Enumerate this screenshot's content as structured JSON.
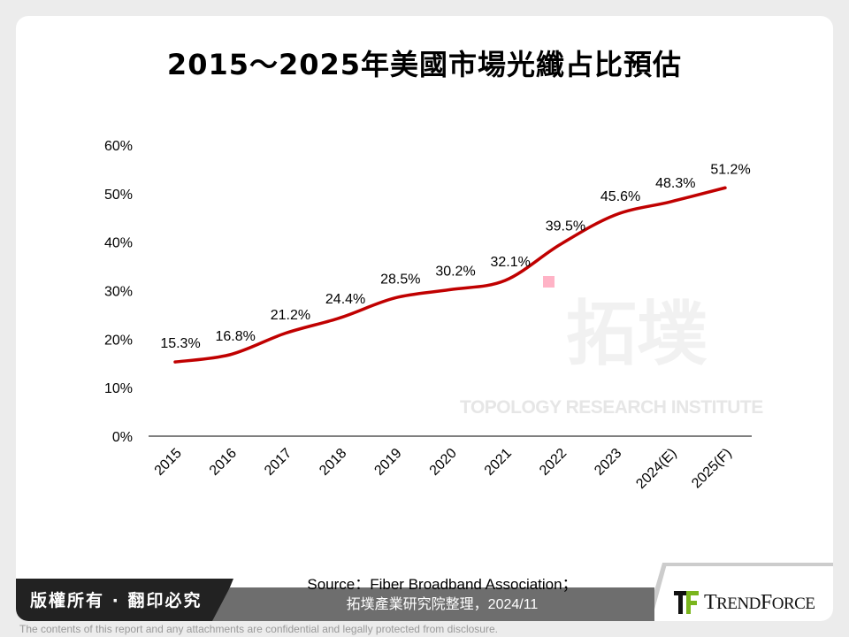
{
  "chart_data": {
    "type": "line",
    "title": "2015～2025年美國市場光纖占比預估",
    "categories": [
      "2015",
      "2016",
      "2017",
      "2018",
      "2019",
      "2020",
      "2021",
      "2022",
      "2023",
      "2024(E)",
      "2025(F)"
    ],
    "values": [
      15.3,
      16.8,
      21.2,
      24.4,
      28.5,
      30.2,
      32.1,
      39.5,
      45.6,
      48.3,
      51.2
    ],
    "data_labels": [
      "15.3%",
      "16.8%",
      "21.2%",
      "24.4%",
      "28.5%",
      "30.2%",
      "32.1%",
      "39.5%",
      "45.6%",
      "48.3%",
      "51.2%"
    ],
    "y_ticks": [
      "0%",
      "10%",
      "20%",
      "30%",
      "40%",
      "50%",
      "60%"
    ],
    "ylim": [
      0,
      60
    ],
    "grid": false,
    "line_color": "#c00000",
    "xlabel": "",
    "ylabel": ""
  },
  "watermark": {
    "cn": "拓墣",
    "en": "TOPOLOGY RESEARCH INSTITUTE"
  },
  "footer": {
    "copyright": "版權所有 · 翻印必究",
    "source_line1": "Source：Fiber Broadband Association；",
    "source_line2": "拓墣產業研究院整理，2024/11",
    "logo": "TRENDFORCE",
    "disclaimer": "The contents of this report and any attachments are confidential and legally protected from disclosure."
  }
}
